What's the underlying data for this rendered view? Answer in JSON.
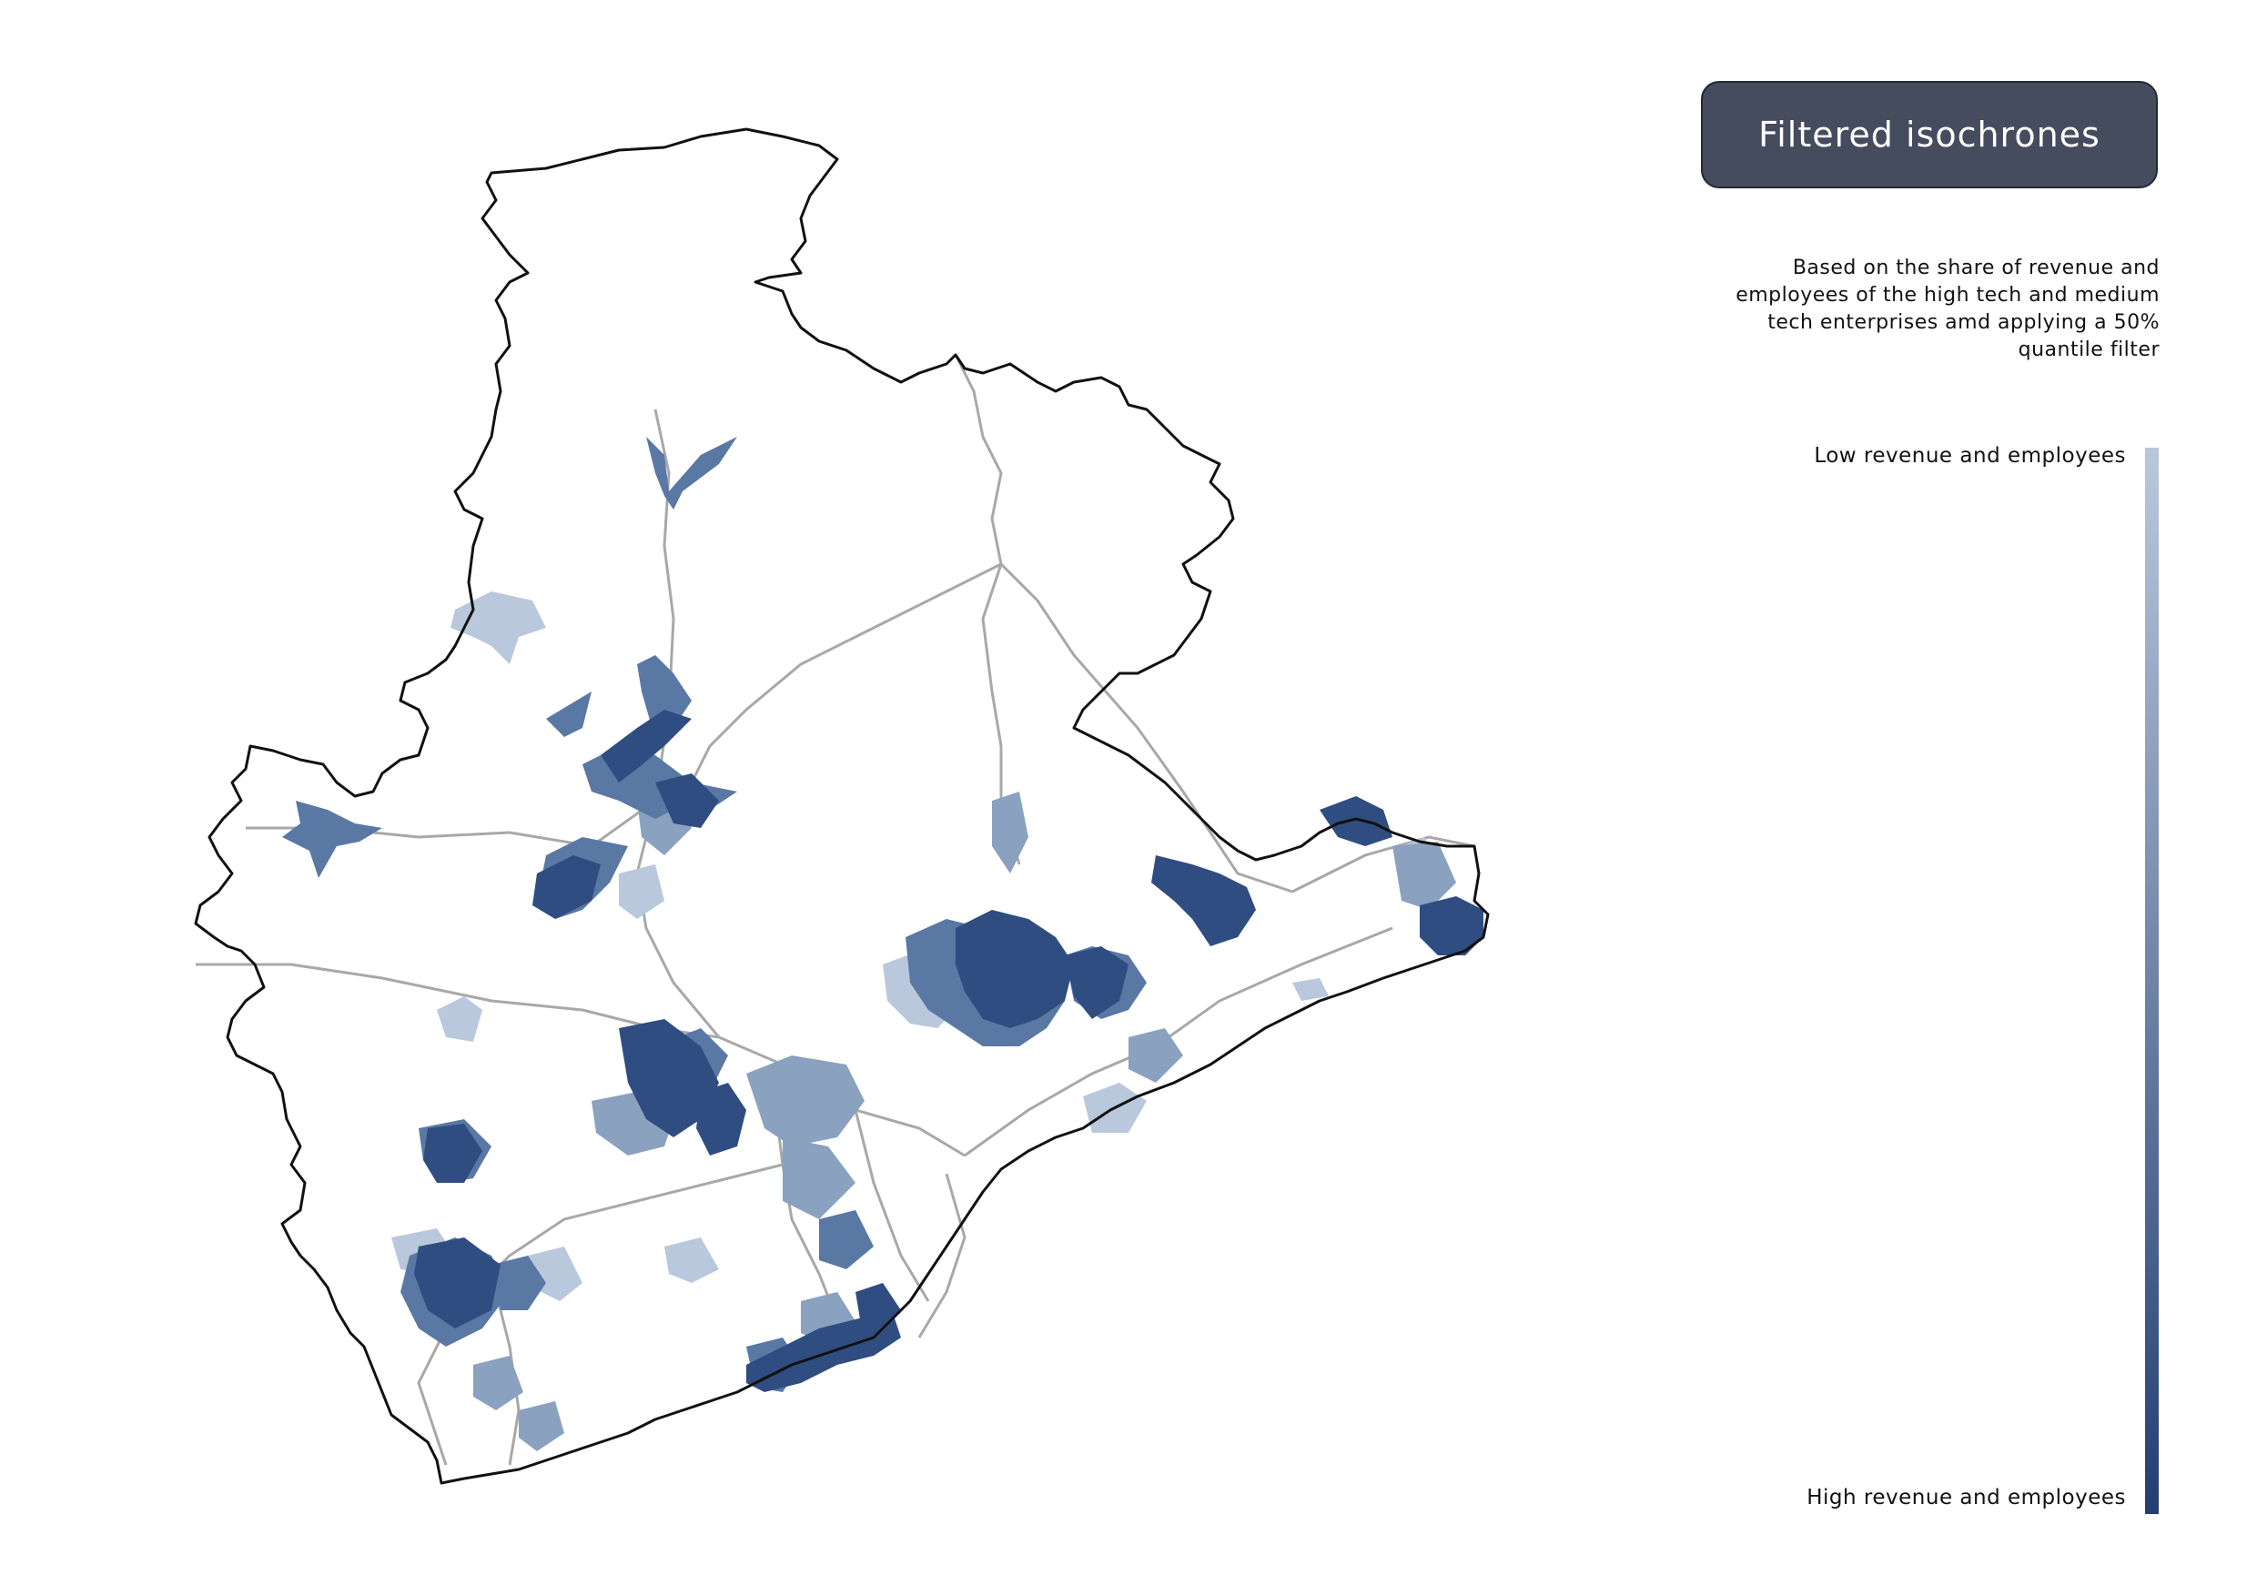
{
  "title": "Filtered isochrones",
  "description": [
    "Based on the share of revenue and",
    "employees of the  high tech and medium",
    "tech enterprises amd applying a 50%",
    "quantile filter"
  ],
  "legend": {
    "low_label": "Low revenue and employees",
    "high_label": "High revenue and employees",
    "color_low": "#b9c8dc",
    "color_high": "#223e72"
  },
  "colors": {
    "boundary": "#111111",
    "roads": "#a8a8a8",
    "title_box": "#454c5e"
  }
}
